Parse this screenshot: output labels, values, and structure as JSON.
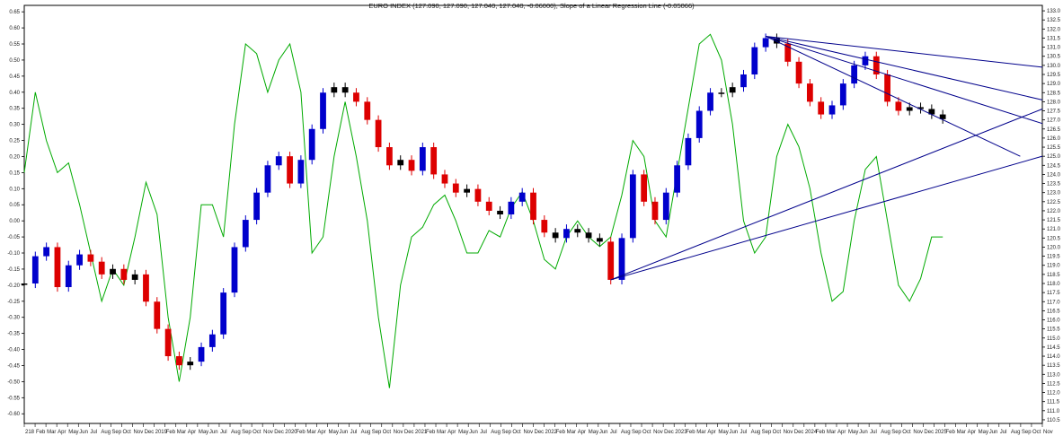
{
  "title": "EURO INDEX (127.090, 127.090, 127.040, 127.040, -0.06000), Slope of a Linear Regression Line (-0.05066)",
  "chart_data": {
    "type": "candlestick",
    "title": "EURO INDEX (127.090, 127.090, 127.040, 127.040, -0.06000), Slope of a Linear Regression Line (-0.05066)",
    "legend": "none",
    "grid": false,
    "colors": {
      "up": "#0000cc",
      "down": "#dd0000",
      "neutral": "#000000",
      "indicator": "#00aa00",
      "trendlines": "#00008b"
    },
    "left_axis": {
      "label": "",
      "range": [
        -0.63,
        0.67
      ],
      "ticks": [
        "0.65",
        "0.60",
        "0.55",
        "0.50",
        "0.45",
        "0.40",
        "0.35",
        "0.30",
        "0.25",
        "0.20",
        "0.15",
        "0.10",
        "0.05",
        "0.00",
        "-0.05",
        "-0.10",
        "-0.15",
        "-0.20",
        "-0.25",
        "-0.30",
        "-0.35",
        "-0.40",
        "-0.45",
        "-0.50",
        "-0.55",
        "-0.60"
      ]
    },
    "right_axis": {
      "label": "",
      "range": [
        110.3,
        133.3
      ],
      "ticks": [
        "133.0",
        "132.5",
        "132.0",
        "131.5",
        "131.0",
        "130.5",
        "130.0",
        "129.5",
        "129.0",
        "128.5",
        "128.0",
        "127.5",
        "127.0",
        "126.5",
        "126.0",
        "125.5",
        "125.0",
        "124.5",
        "124.0",
        "123.5",
        "123.0",
        "122.5",
        "122.0",
        "121.5",
        "121.0",
        "120.5",
        "120.0",
        "119.5",
        "119.0",
        "118.5",
        "118.0",
        "117.5",
        "117.0",
        "116.5",
        "116.0",
        "115.5",
        "115.0",
        "114.5",
        "114.0",
        "113.5",
        "113.0",
        "112.5",
        "112.0",
        "111.5",
        "111.0",
        "110.5"
      ]
    },
    "x_axis": {
      "label": "",
      "range": [
        0,
        92
      ],
      "ticks": [
        "218",
        "Feb",
        "Mar",
        "Apr",
        "May",
        "Jun",
        "Jul",
        "Aug",
        "Sep",
        "Oct",
        "Nov",
        "Dec",
        "2019",
        "Feb",
        "Mar",
        "Apr",
        "May",
        "Jun",
        "Jul",
        "Aug",
        "Sep",
        "Oct",
        "Nov",
        "Dec",
        "2020",
        "Feb",
        "Mar",
        "Apr",
        "May",
        "Jun",
        "Jul",
        "Aug",
        "Sep",
        "Oct",
        "Nov",
        "Dec",
        "2021",
        "Feb",
        "Mar",
        "Apr",
        "May",
        "Jun",
        "Jul",
        "Aug",
        "Sep",
        "Oct",
        "Nov",
        "Dec",
        "2022",
        "Feb",
        "Mar",
        "Apr",
        "May",
        "Jun",
        "Jul",
        "Aug",
        "Sep",
        "Oct",
        "Nov",
        "Dec",
        "2023",
        "Feb",
        "Mar",
        "Apr",
        "May",
        "Jun",
        "Jul",
        "Aug",
        "Sep",
        "Oct",
        "Nov",
        "Dec",
        "2024",
        "Feb",
        "Mar",
        "Apr",
        "May",
        "Jun",
        "Jul",
        "Aug",
        "Sep",
        "Oct",
        "Nov",
        "Dec",
        "2025",
        "Feb",
        "Mar",
        "Apr",
        "May",
        "Jun",
        "Jul",
        "Aug",
        "Sep",
        "Oct",
        "Nov"
      ]
    },
    "price_series": {
      "name": "",
      "points": [
        [
          0,
          118.0
        ],
        [
          1,
          119.5
        ],
        [
          2,
          120.0
        ],
        [
          3,
          117.8
        ],
        [
          4,
          119.0
        ],
        [
          5,
          119.6
        ],
        [
          6,
          119.2
        ],
        [
          7,
          118.5
        ],
        [
          8,
          118.8
        ],
        [
          9,
          118.2
        ],
        [
          10,
          118.5
        ],
        [
          11,
          117.0
        ],
        [
          12,
          115.5
        ],
        [
          13,
          114.0
        ],
        [
          14,
          113.5
        ],
        [
          15,
          113.7
        ],
        [
          16,
          114.5
        ],
        [
          17,
          115.2
        ],
        [
          18,
          117.5
        ],
        [
          19,
          120.0
        ],
        [
          20,
          121.5
        ],
        [
          21,
          123.0
        ],
        [
          22,
          124.5
        ],
        [
          23,
          125.0
        ],
        [
          24,
          123.5
        ],
        [
          25,
          124.8
        ],
        [
          26,
          126.5
        ],
        [
          27,
          128.5
        ],
        [
          28,
          128.8
        ],
        [
          29,
          128.5
        ],
        [
          30,
          128.0
        ],
        [
          31,
          127.0
        ],
        [
          32,
          125.5
        ],
        [
          33,
          124.5
        ],
        [
          34,
          124.8
        ],
        [
          35,
          124.2
        ],
        [
          36,
          125.5
        ],
        [
          37,
          124.0
        ],
        [
          38,
          123.5
        ],
        [
          39,
          123.0
        ],
        [
          40,
          123.2
        ],
        [
          41,
          122.5
        ],
        [
          42,
          122.0
        ],
        [
          43,
          121.8
        ],
        [
          44,
          122.5
        ],
        [
          45,
          123.0
        ],
        [
          46,
          121.5
        ],
        [
          47,
          120.8
        ],
        [
          48,
          120.5
        ],
        [
          49,
          121.0
        ],
        [
          50,
          120.8
        ],
        [
          51,
          120.5
        ],
        [
          52,
          120.3
        ],
        [
          53,
          118.2
        ],
        [
          54,
          120.5
        ],
        [
          55,
          124.0
        ],
        [
          56,
          122.5
        ],
        [
          57,
          121.5
        ],
        [
          58,
          123.0
        ],
        [
          59,
          124.5
        ],
        [
          60,
          126.0
        ],
        [
          61,
          127.5
        ],
        [
          62,
          128.5
        ],
        [
          63,
          128.5
        ],
        [
          64,
          128.8
        ],
        [
          65,
          129.5
        ],
        [
          66,
          131.0
        ],
        [
          67,
          131.5
        ],
        [
          68,
          131.2
        ],
        [
          69,
          130.2
        ],
        [
          70,
          129.0
        ],
        [
          71,
          128.0
        ],
        [
          72,
          127.3
        ],
        [
          73,
          127.8
        ],
        [
          74,
          129.0
        ],
        [
          75,
          130.0
        ],
        [
          76,
          130.5
        ],
        [
          77,
          129.5
        ],
        [
          78,
          128.0
        ],
        [
          79,
          127.5
        ],
        [
          80,
          127.7
        ],
        [
          81,
          127.6
        ],
        [
          82,
          127.3
        ],
        [
          83,
          127.04
        ]
      ]
    },
    "indicator_series": {
      "name": "",
      "points": [
        [
          0,
          0.15
        ],
        [
          1,
          0.4
        ],
        [
          2,
          0.25
        ],
        [
          3,
          0.15
        ],
        [
          4,
          0.18
        ],
        [
          5,
          0.05
        ],
        [
          6,
          -0.1
        ],
        [
          7,
          -0.25
        ],
        [
          8,
          -0.15
        ],
        [
          9,
          -0.2
        ],
        [
          10,
          -0.05
        ],
        [
          11,
          0.12
        ],
        [
          12,
          0.02
        ],
        [
          13,
          -0.3
        ],
        [
          14,
          -0.5
        ],
        [
          15,
          -0.3
        ],
        [
          16,
          0.05
        ],
        [
          17,
          0.05
        ],
        [
          18,
          -0.05
        ],
        [
          19,
          0.3
        ],
        [
          20,
          0.55
        ],
        [
          21,
          0.52
        ],
        [
          22,
          0.4
        ],
        [
          23,
          0.5
        ],
        [
          24,
          0.55
        ],
        [
          25,
          0.4
        ],
        [
          26,
          -0.1
        ],
        [
          27,
          -0.05
        ],
        [
          28,
          0.2
        ],
        [
          29,
          0.37
        ],
        [
          30,
          0.2
        ],
        [
          31,
          0.0
        ],
        [
          32,
          -0.3
        ],
        [
          33,
          -0.52
        ],
        [
          34,
          -0.2
        ],
        [
          35,
          -0.05
        ],
        [
          36,
          -0.02
        ],
        [
          37,
          0.05
        ],
        [
          38,
          0.08
        ],
        [
          39,
          0.0
        ],
        [
          40,
          -0.1
        ],
        [
          41,
          -0.1
        ],
        [
          42,
          -0.03
        ],
        [
          43,
          -0.05
        ],
        [
          44,
          0.04
        ],
        [
          45,
          0.09
        ],
        [
          46,
          0.0
        ],
        [
          47,
          -0.12
        ],
        [
          48,
          -0.15
        ],
        [
          49,
          -0.05
        ],
        [
          50,
          0.0
        ],
        [
          51,
          -0.05
        ],
        [
          52,
          -0.08
        ],
        [
          53,
          -0.05
        ],
        [
          54,
          0.08
        ],
        [
          55,
          0.25
        ],
        [
          56,
          0.2
        ],
        [
          57,
          0.0
        ],
        [
          58,
          -0.05
        ],
        [
          59,
          0.15
        ],
        [
          60,
          0.35
        ],
        [
          61,
          0.55
        ],
        [
          62,
          0.58
        ],
        [
          63,
          0.5
        ],
        [
          64,
          0.3
        ],
        [
          65,
          0.0
        ],
        [
          66,
          -0.1
        ],
        [
          67,
          -0.05
        ],
        [
          68,
          0.2
        ],
        [
          69,
          0.3
        ],
        [
          70,
          0.23
        ],
        [
          71,
          0.1
        ],
        [
          72,
          -0.1
        ],
        [
          73,
          -0.25
        ],
        [
          74,
          -0.22
        ],
        [
          75,
          0.0
        ],
        [
          76,
          0.16
        ],
        [
          77,
          0.2
        ],
        [
          78,
          0.0
        ],
        [
          79,
          -0.2
        ],
        [
          80,
          -0.25
        ],
        [
          81,
          -0.18
        ],
        [
          82,
          -0.05
        ],
        [
          83,
          -0.05
        ]
      ]
    },
    "trendlines": [
      {
        "from": [
          53,
          118.2
        ],
        "to": [
          92,
          127.6
        ]
      },
      {
        "from": [
          53,
          118.2
        ],
        "to": [
          92,
          125.0
        ]
      },
      {
        "from": [
          67,
          131.6
        ],
        "to": [
          92,
          129.9
        ]
      },
      {
        "from": [
          67,
          131.6
        ],
        "to": [
          92,
          128.1
        ]
      },
      {
        "from": [
          67,
          131.6
        ],
        "to": [
          92,
          126.8
        ]
      },
      {
        "from": [
          67,
          131.6
        ],
        "to": [
          90,
          125.0
        ]
      }
    ]
  }
}
